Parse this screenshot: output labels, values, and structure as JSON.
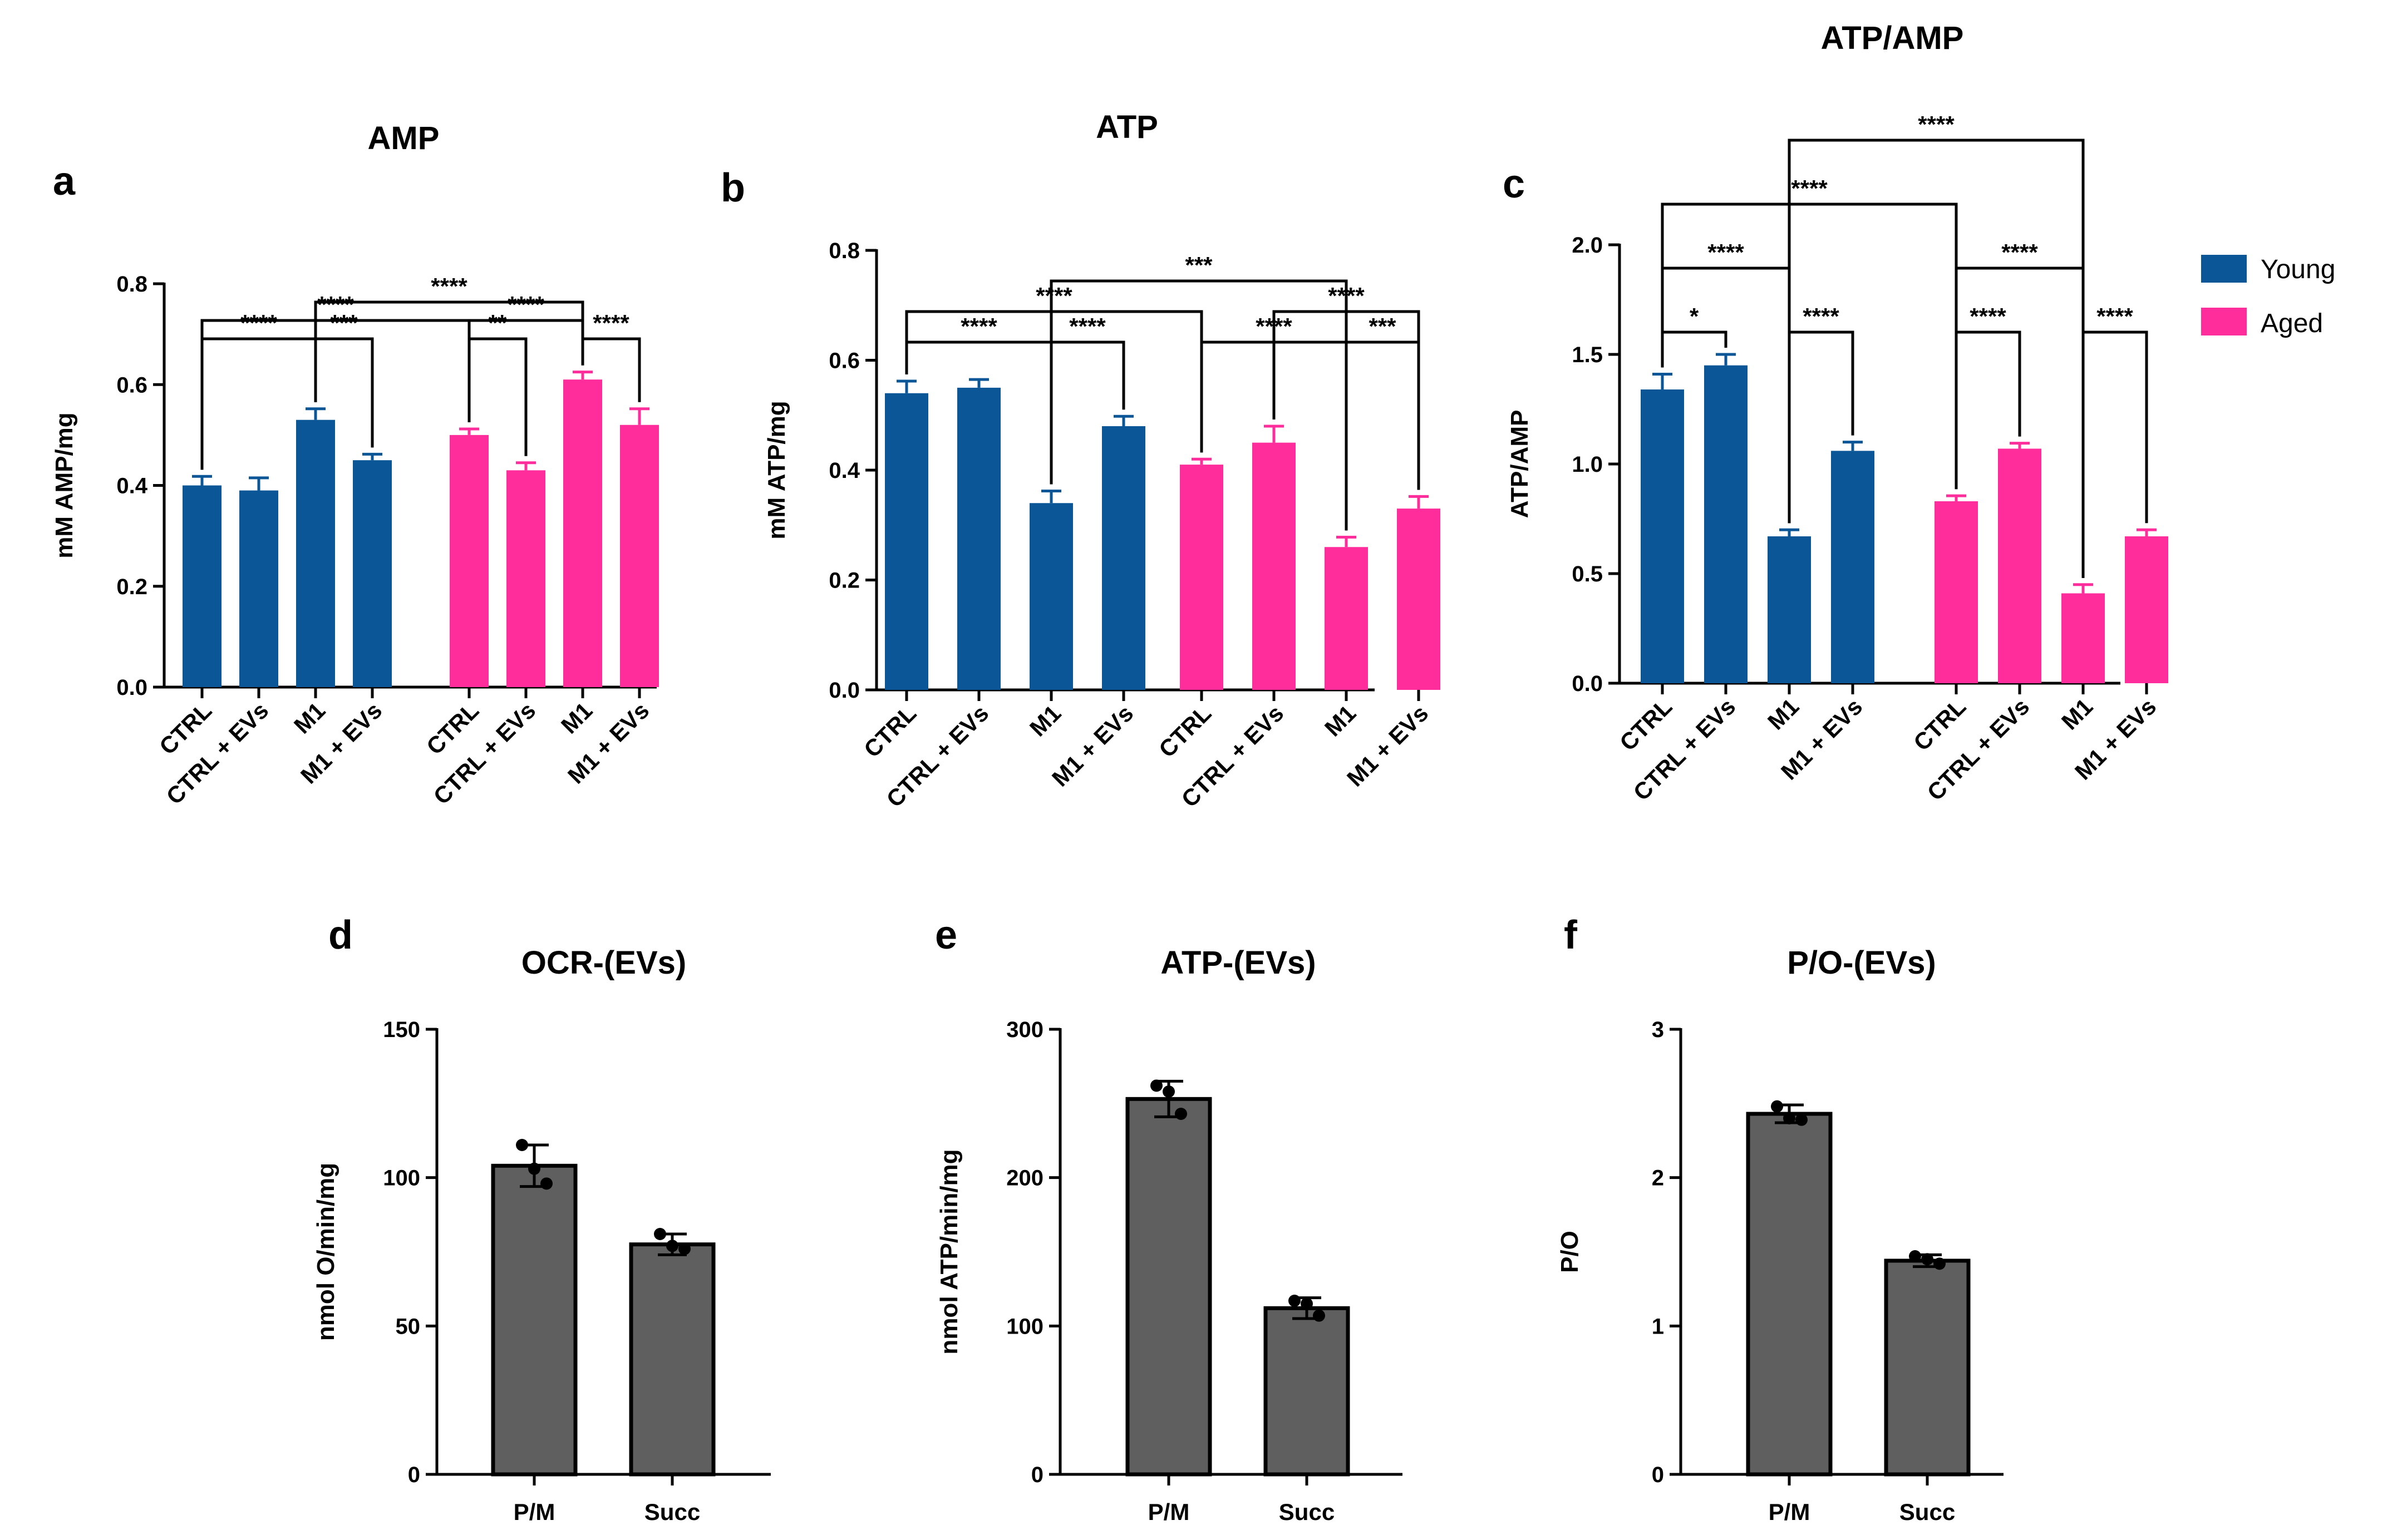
{
  "figure": {
    "legend": [
      {
        "label": "Young",
        "color": "#0a5697"
      },
      {
        "label": "Aged",
        "color": "#ff2d9b"
      }
    ]
  },
  "chart_data": [
    {
      "panel": "a",
      "type": "bar",
      "title": "AMP",
      "ylabel": "mM AMP/mg",
      "ylim": [
        0,
        0.8
      ],
      "yticks": [
        "0.0",
        "0.2",
        "0.4",
        "0.6",
        "0.8"
      ],
      "categories": [
        "CTRL",
        "CTRL + EVs",
        "M1",
        "M1 + EVs"
      ],
      "series": [
        {
          "name": "Young",
          "color": "#0a5697",
          "values": [
            0.4,
            0.39,
            0.53,
            0.45
          ],
          "errors": [
            0.018,
            0.025,
            0.022,
            0.012
          ]
        },
        {
          "name": "Aged",
          "color": "#ff2d9b",
          "values": [
            0.5,
            0.43,
            0.61,
            0.52
          ],
          "errors": [
            0.012,
            0.015,
            0.015,
            0.032
          ]
        }
      ],
      "significance": [
        {
          "from": 0,
          "to": 2,
          "level": 1,
          "label": "****"
        },
        {
          "from": 2,
          "to": 3,
          "level": 1,
          "label": "***"
        },
        {
          "from": 4,
          "to": 5,
          "level": 1,
          "label": "**"
        },
        {
          "from": 6,
          "to": 7,
          "level": 1,
          "label": "****"
        },
        {
          "from": 0,
          "to": 4,
          "level": 2,
          "label": "****"
        },
        {
          "from": 4,
          "to": 6,
          "level": 2,
          "label": "****"
        },
        {
          "from": 2,
          "to": 6,
          "level": 3,
          "label": "****"
        }
      ]
    },
    {
      "panel": "b",
      "type": "bar",
      "title": "ATP",
      "ylabel": "mM ATP/mg",
      "ylim": [
        0,
        0.8
      ],
      "yticks": [
        "0.0",
        "0.2",
        "0.4",
        "0.6",
        "0.8"
      ],
      "categories": [
        "CTRL",
        "CTRL + EVs",
        "M1",
        "M1 + EVs"
      ],
      "series": [
        {
          "name": "Young",
          "color": "#0a5697",
          "values": [
            0.54,
            0.55,
            0.34,
            0.48
          ],
          "errors": [
            0.022,
            0.015,
            0.022,
            0.018
          ]
        },
        {
          "name": "Aged",
          "color": "#ff2d9b",
          "values": [
            0.41,
            0.45,
            0.26,
            0.33
          ],
          "errors": [
            0.01,
            0.03,
            0.018,
            0.022
          ]
        }
      ],
      "significance": [
        {
          "from": 0,
          "to": 2,
          "level": 1,
          "label": "****"
        },
        {
          "from": 2,
          "to": 3,
          "level": 1,
          "label": "****"
        },
        {
          "from": 4,
          "to": 6,
          "level": 1,
          "label": "****"
        },
        {
          "from": 6,
          "to": 7,
          "level": 1,
          "label": "***"
        },
        {
          "from": 0,
          "to": 4,
          "level": 2,
          "label": "****"
        },
        {
          "from": 5,
          "to": 7,
          "level": 2,
          "label": "****"
        },
        {
          "from": 2,
          "to": 6,
          "level": 3,
          "label": "***"
        }
      ]
    },
    {
      "panel": "c",
      "type": "bar",
      "title": "ATP/AMP",
      "ylabel": "ATP/AMP",
      "ylim": [
        0,
        2.0
      ],
      "yticks": [
        "0.0",
        "0.5",
        "1.0",
        "1.5",
        "2.0"
      ],
      "categories": [
        "CTRL",
        "CTRL + EVs",
        "M1",
        "M1 + EVs"
      ],
      "series": [
        {
          "name": "Young",
          "color": "#0a5697",
          "values": [
            1.34,
            1.45,
            0.67,
            1.06
          ],
          "errors": [
            0.07,
            0.05,
            0.03,
            0.04
          ]
        },
        {
          "name": "Aged",
          "color": "#ff2d9b",
          "values": [
            0.83,
            1.07,
            0.41,
            0.67
          ],
          "errors": [
            0.025,
            0.025,
            0.04,
            0.03
          ]
        }
      ],
      "significance": [
        {
          "from": 0,
          "to": 1,
          "level": 1,
          "label": "*"
        },
        {
          "from": 2,
          "to": 3,
          "level": 1,
          "label": "****"
        },
        {
          "from": 4,
          "to": 5,
          "level": 1,
          "label": "****"
        },
        {
          "from": 6,
          "to": 7,
          "level": 1,
          "label": "****"
        },
        {
          "from": 0,
          "to": 2,
          "level": 2,
          "label": "****"
        },
        {
          "from": 4,
          "to": 6,
          "level": 2,
          "label": "****"
        },
        {
          "from": 0,
          "to": 4,
          "level": 3,
          "label": "****"
        },
        {
          "from": 2,
          "to": 6,
          "level": 4,
          "label": "****"
        }
      ]
    },
    {
      "panel": "d",
      "type": "bar",
      "title": "OCR-(EVs)",
      "ylabel": "nmol O/min/mg",
      "ylim": [
        0,
        150
      ],
      "yticks": [
        "0",
        "50",
        "100",
        "150"
      ],
      "categories": [
        "P/M",
        "Succ"
      ],
      "color": "#5f5f5f",
      "values": [
        104,
        77.5
      ],
      "errors": [
        7,
        3.5
      ],
      "points": [
        [
          111,
          103,
          98
        ],
        [
          81,
          77,
          76
        ]
      ]
    },
    {
      "panel": "e",
      "type": "bar",
      "title": "ATP-(EVs)",
      "ylabel": "nmol ATP/min/mg",
      "ylim": [
        0,
        300
      ],
      "yticks": [
        "0",
        "100",
        "200",
        "300"
      ],
      "categories": [
        "P/M",
        "Succ"
      ],
      "color": "#5f5f5f",
      "values": [
        253,
        112
      ],
      "errors": [
        12,
        7
      ],
      "points": [
        [
          262,
          258,
          243
        ],
        [
          117,
          115,
          107
        ]
      ]
    },
    {
      "panel": "f",
      "type": "bar",
      "title": "P/O-(EVs)",
      "ylabel": "P/O",
      "ylim": [
        0,
        3
      ],
      "yticks": [
        "0",
        "1",
        "2",
        "3"
      ],
      "categories": [
        "P/M",
        "Succ"
      ],
      "color": "#5f5f5f",
      "values": [
        2.43,
        1.44
      ],
      "errors": [
        0.06,
        0.04
      ],
      "points": [
        [
          2.48,
          2.4,
          2.39
        ],
        [
          1.47,
          1.45,
          1.42
        ]
      ]
    }
  ]
}
